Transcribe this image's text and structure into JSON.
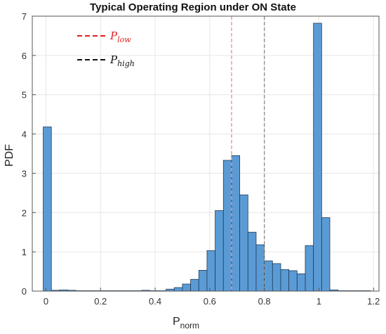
{
  "chart_data": {
    "type": "bar",
    "title": "Typical Operating Region under ON State",
    "xlabel": {
      "main": "P",
      "sub": "norm"
    },
    "ylabel": "PDF",
    "xlim": [
      -0.05,
      1.22
    ],
    "ylim": [
      0,
      7
    ],
    "xticks": [
      0,
      0.2,
      0.4,
      0.6,
      0.8,
      1,
      1.2
    ],
    "xtick_labels": [
      "0",
      "0.2",
      "0.4",
      "0.6",
      "0.8",
      "1",
      "1.2"
    ],
    "yticks": [
      0,
      1,
      2,
      3,
      4,
      5,
      6,
      7
    ],
    "ytick_labels": [
      "0",
      "1",
      "2",
      "3",
      "4",
      "5",
      "6",
      "7"
    ],
    "grid": true,
    "bin_width": 0.03,
    "bins": [
      {
        "x0": -0.01,
        "value": 4.18
      },
      {
        "x0": 0.02,
        "value": 0.02
      },
      {
        "x0": 0.05,
        "value": 0.03
      },
      {
        "x0": 0.08,
        "value": 0.02
      },
      {
        "x0": 0.11,
        "value": 0.01
      },
      {
        "x0": 0.14,
        "value": 0.01
      },
      {
        "x0": 0.17,
        "value": 0.01
      },
      {
        "x0": 0.2,
        "value": 0.01
      },
      {
        "x0": 0.23,
        "value": 0.01
      },
      {
        "x0": 0.26,
        "value": 0.01
      },
      {
        "x0": 0.29,
        "value": 0.01
      },
      {
        "x0": 0.32,
        "value": 0.01
      },
      {
        "x0": 0.35,
        "value": 0.02
      },
      {
        "x0": 0.38,
        "value": 0.01
      },
      {
        "x0": 0.41,
        "value": 0.01
      },
      {
        "x0": 0.44,
        "value": 0.05
      },
      {
        "x0": 0.47,
        "value": 0.09
      },
      {
        "x0": 0.5,
        "value": 0.18
      },
      {
        "x0": 0.53,
        "value": 0.3
      },
      {
        "x0": 0.56,
        "value": 0.53
      },
      {
        "x0": 0.59,
        "value": 1.03
      },
      {
        "x0": 0.62,
        "value": 2.05
      },
      {
        "x0": 0.65,
        "value": 3.33
      },
      {
        "x0": 0.68,
        "value": 3.45
      },
      {
        "x0": 0.71,
        "value": 2.45
      },
      {
        "x0": 0.74,
        "value": 1.5
      },
      {
        "x0": 0.77,
        "value": 1.18
      },
      {
        "x0": 0.8,
        "value": 0.77
      },
      {
        "x0": 0.83,
        "value": 0.7
      },
      {
        "x0": 0.86,
        "value": 0.55
      },
      {
        "x0": 0.89,
        "value": 0.52
      },
      {
        "x0": 0.92,
        "value": 0.44
      },
      {
        "x0": 0.95,
        "value": 1.16
      },
      {
        "x0": 0.98,
        "value": 6.82
      },
      {
        "x0": 1.01,
        "value": 1.87
      },
      {
        "x0": 1.04,
        "value": 0.03
      },
      {
        "x0": 1.07,
        "value": 0.01
      },
      {
        "x0": 1.1,
        "value": 0.01
      },
      {
        "x0": 1.13,
        "value": 0.01
      },
      {
        "x0": 1.16,
        "value": 0.01
      }
    ],
    "reference_lines": [
      {
        "name": "P_low",
        "label_main": "P",
        "label_sub": "low",
        "x": 0.68,
        "color": "#f08a8a",
        "legend_color": "#e02020",
        "text_color": "#e02020"
      },
      {
        "name": "P_high",
        "label_main": "P",
        "label_sub": "high",
        "x": 0.8,
        "color": "#8c8c8c",
        "legend_color": "#111111",
        "text_color": "#111111"
      }
    ],
    "legend_position": "top-left",
    "colors": {
      "bar_fill": "#5b9bd5",
      "bar_edge": "#1f3b57",
      "grid": "#e6e6e6",
      "axes": "#555555"
    }
  }
}
